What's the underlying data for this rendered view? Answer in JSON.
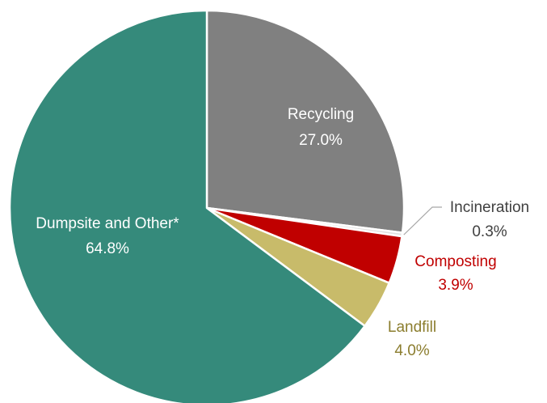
{
  "chart_data": {
    "type": "pie",
    "start_angle_deg": 0,
    "direction": "clockwise",
    "slices": [
      {
        "label": "Recycling",
        "value": 27.0,
        "value_label": "27.0%",
        "color": "#808080",
        "label_color": "#ffffff",
        "label_placement": "inside"
      },
      {
        "label": "Incineration",
        "value": 0.3,
        "value_label": "0.3%",
        "color": "#e0e0e0",
        "label_color": "#404040",
        "label_placement": "outside-with-leader"
      },
      {
        "label": "Composting",
        "value": 3.9,
        "value_label": "3.9%",
        "color": "#c00000",
        "label_color": "#c00000",
        "label_placement": "outside"
      },
      {
        "label": "Landfill",
        "value": 4.0,
        "value_label": "4.0%",
        "color": "#c8bb6a",
        "label_color": "#8b7d2e",
        "label_placement": "outside"
      },
      {
        "label": "Dumpsite and Other*",
        "value": 64.8,
        "value_label": "64.8%",
        "color": "#358a7b",
        "label_color": "#ffffff",
        "label_placement": "inside"
      }
    ]
  }
}
